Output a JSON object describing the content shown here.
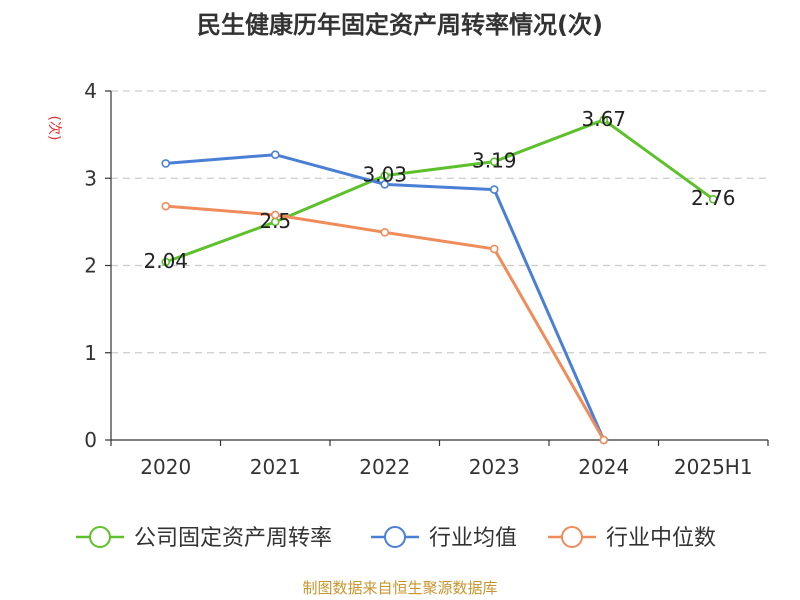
{
  "chart_data": {
    "type": "line",
    "title": "民生健康历年固定资产周转率情况(次)",
    "ylabel": "(次)",
    "xlabel": "",
    "categories": [
      "2020",
      "2021",
      "2022",
      "2023",
      "2024",
      "2025H1"
    ],
    "ylim": [
      0,
      4
    ],
    "yticks": [
      "0",
      "1",
      "2",
      "3",
      "4"
    ],
    "grid": true,
    "legend_position": "bottom",
    "series": [
      {
        "name": "公司固定资产周转率",
        "color": "#5cc12a",
        "values": [
          2.04,
          2.5,
          3.03,
          3.19,
          3.67,
          2.76
        ],
        "labels": [
          "2.04",
          "2.5",
          "3.03",
          "3.19",
          "3.67",
          "2.76"
        ]
      },
      {
        "name": "行业均值",
        "color": "#4a7fd6",
        "values": [
          3.17,
          3.27,
          2.93,
          2.87,
          0,
          null
        ]
      },
      {
        "name": "行业中位数",
        "color": "#f08c5a",
        "values": [
          2.68,
          2.58,
          2.38,
          2.19,
          0,
          null
        ]
      }
    ],
    "source": "制图数据来自恒生聚源数据库"
  }
}
